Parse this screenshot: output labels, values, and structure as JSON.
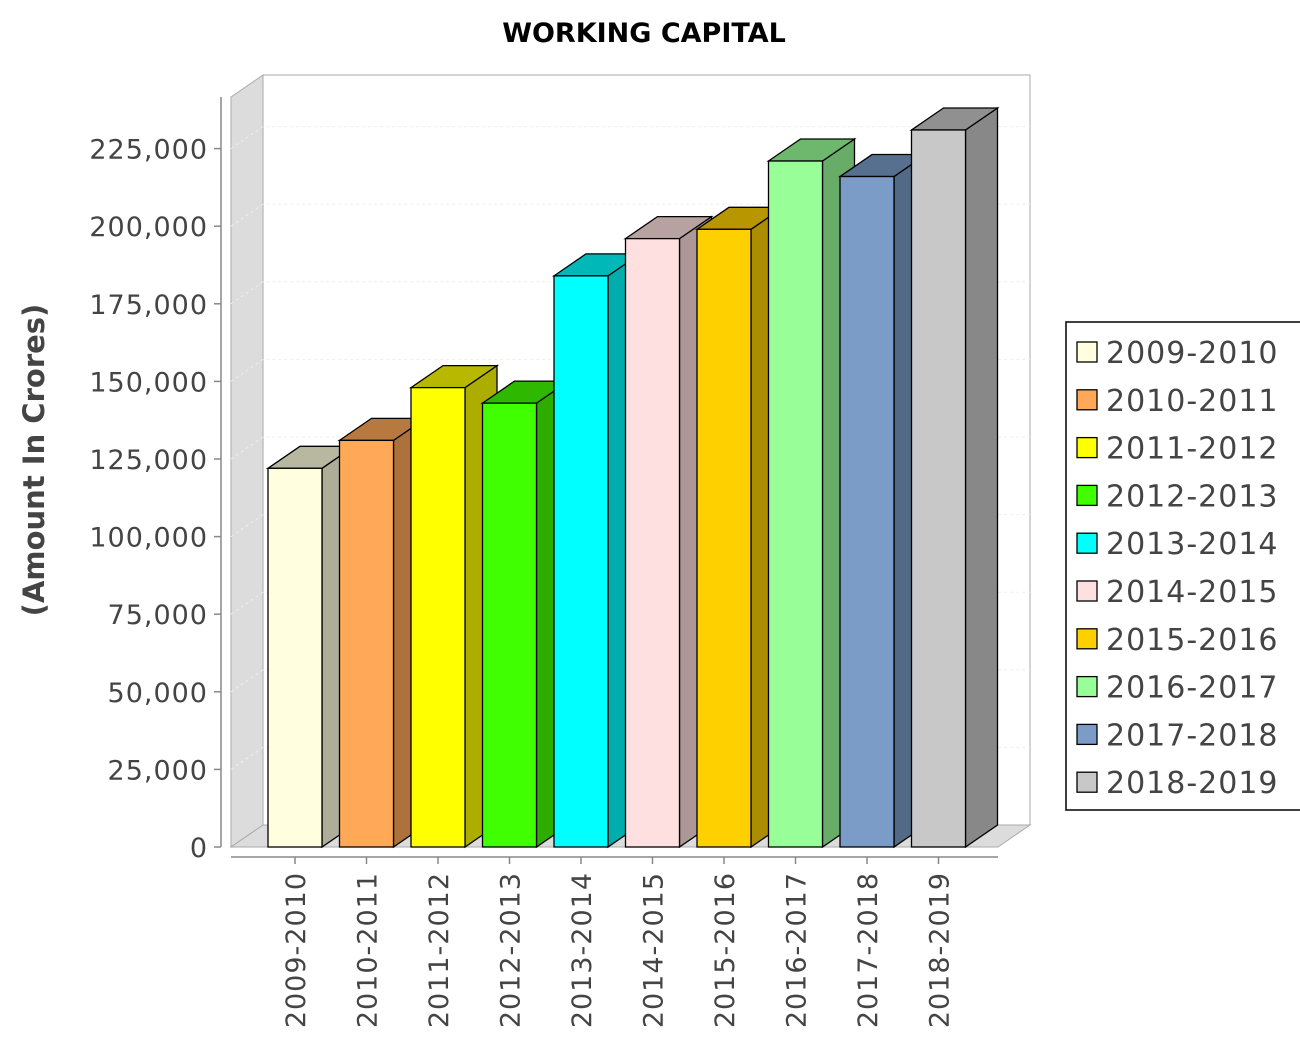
{
  "chart_data": {
    "type": "bar",
    "title": "WORKING CAPITAL",
    "xlabel": "",
    "ylabel": "(Amount In Crores)",
    "ylim": [
      0,
      240000
    ],
    "y_ticks": [
      "0",
      "25,000",
      "50,000",
      "75,000",
      "100,000",
      "125,000",
      "150,000",
      "175,000",
      "200,000",
      "225,000"
    ],
    "y_tick_values": [
      0,
      25000,
      50000,
      75000,
      100000,
      125000,
      150000,
      175000,
      200000,
      225000
    ],
    "categories": [
      "2009-2010",
      "2010-2011",
      "2011-2012",
      "2012-2013",
      "2013-2014",
      "2014-2015",
      "2015-2016",
      "2016-2017",
      "2017-2018",
      "2018-2019"
    ],
    "values": [
      122000,
      131000,
      148000,
      143000,
      184000,
      196000,
      199000,
      221000,
      216000,
      231000
    ],
    "colors": [
      "#ffffe0",
      "#ffa858",
      "#ffff00",
      "#40ff00",
      "#00ffff",
      "#ffe0e0",
      "#ffd000",
      "#98ff98",
      "#7a9cc6",
      "#c8c8c8"
    ],
    "legend": {
      "position": "right",
      "items": [
        "2009-2010",
        "2010-2011",
        "2011-2012",
        "2012-2013",
        "2013-2014",
        "2014-2015",
        "2015-2016",
        "2016-2017",
        "2017-2018",
        "2018-2019"
      ]
    },
    "style": "3d-bar",
    "grid": true
  }
}
